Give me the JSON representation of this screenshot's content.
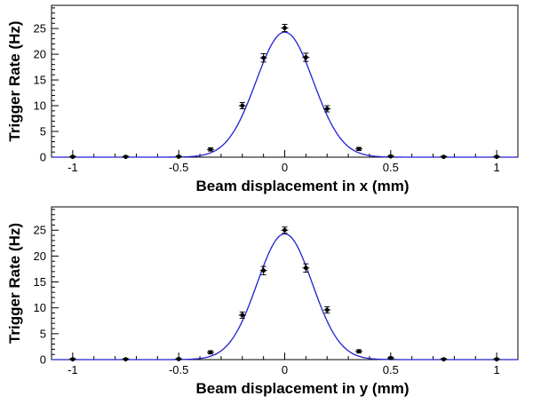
{
  "colors": {
    "fit_curve": "#2020d0",
    "markers": "#000000",
    "axes": "#000000",
    "background": "#ffffff"
  },
  "chart_data": [
    {
      "type": "scatter",
      "title": "",
      "xlabel": "Beam displacement in x (mm)",
      "ylabel": "Trigger Rate (Hz)",
      "xlim": [
        -1.1,
        1.1
      ],
      "ylim": [
        0,
        29.5
      ],
      "x_ticks": [
        -1,
        -0.5,
        0,
        0.5,
        1
      ],
      "x_tick_labels": [
        "-1",
        "-0.5",
        "0",
        "0.5",
        "1"
      ],
      "y_ticks": [
        0,
        5,
        10,
        15,
        20,
        25
      ],
      "y_tick_labels": [
        "0",
        "5",
        "10",
        "15",
        "20",
        "25"
      ],
      "grid": false,
      "legend": "none",
      "points": [
        {
          "x": -1,
          "y": 0.05,
          "err": 0.2
        },
        {
          "x": -0.75,
          "y": 0.05,
          "err": 0.2
        },
        {
          "x": -0.5,
          "y": 0.1,
          "err": 0.2
        },
        {
          "x": -0.35,
          "y": 1.5,
          "err": 0.3
        },
        {
          "x": -0.2,
          "y": 10.0,
          "err": 0.6
        },
        {
          "x": -0.1,
          "y": 19.3,
          "err": 0.8
        },
        {
          "x": 0,
          "y": 25.1,
          "err": 0.7
        },
        {
          "x": 0.1,
          "y": 19.4,
          "err": 0.8
        },
        {
          "x": 0.2,
          "y": 9.4,
          "err": 0.6
        },
        {
          "x": 0.35,
          "y": 1.6,
          "err": 0.3
        },
        {
          "x": 0.5,
          "y": 0.15,
          "err": 0.2
        },
        {
          "x": 0.75,
          "y": 0.05,
          "err": 0.2
        },
        {
          "x": 1,
          "y": 0.05,
          "err": 0.2
        }
      ],
      "fit": {
        "type": "gaussian",
        "amplitude": 24.3,
        "mean": 0.0,
        "sigma": 0.135
      }
    },
    {
      "type": "scatter",
      "title": "",
      "xlabel": "Beam displacement in y (mm)",
      "ylabel": "Trigger Rate (Hz)",
      "xlim": [
        -1.1,
        1.1
      ],
      "ylim": [
        0,
        29.5
      ],
      "x_ticks": [
        -1,
        -0.5,
        0,
        0.5,
        1
      ],
      "x_tick_labels": [
        "-1",
        "-0.5",
        "0",
        "0.5",
        "1"
      ],
      "y_ticks": [
        0,
        5,
        10,
        15,
        20,
        25
      ],
      "y_tick_labels": [
        "0",
        "5",
        "10",
        "15",
        "20",
        "25"
      ],
      "grid": false,
      "legend": "none",
      "points": [
        {
          "x": -1,
          "y": 0.05,
          "err": 0.2
        },
        {
          "x": -0.75,
          "y": 0.05,
          "err": 0.2
        },
        {
          "x": -0.5,
          "y": 0.1,
          "err": 0.2
        },
        {
          "x": -0.35,
          "y": 1.4,
          "err": 0.3
        },
        {
          "x": -0.2,
          "y": 8.6,
          "err": 0.6
        },
        {
          "x": -0.1,
          "y": 17.2,
          "err": 0.8
        },
        {
          "x": 0,
          "y": 25.0,
          "err": 0.6
        },
        {
          "x": 0.1,
          "y": 17.7,
          "err": 0.8
        },
        {
          "x": 0.2,
          "y": 9.6,
          "err": 0.6
        },
        {
          "x": 0.35,
          "y": 1.6,
          "err": 0.3
        },
        {
          "x": 0.5,
          "y": 0.3,
          "err": 0.2
        },
        {
          "x": 0.75,
          "y": 0.05,
          "err": 0.2
        },
        {
          "x": 1,
          "y": 0.05,
          "err": 0.2
        }
      ],
      "fit": {
        "type": "gaussian",
        "amplitude": 24.3,
        "mean": 0.0,
        "sigma": 0.13
      }
    }
  ]
}
